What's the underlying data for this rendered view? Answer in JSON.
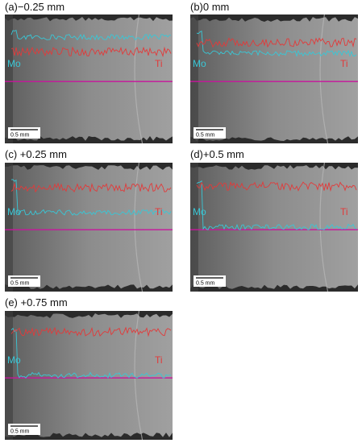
{
  "figure": {
    "element_label_left": "Mo",
    "element_label_right": "Ti",
    "scale_bar_label": "0.5 mm",
    "colors": {
      "mo_trace": "#39c7d6",
      "ti_trace": "#e23a3a",
      "line_scan": "#c8149c",
      "background": "#8c8c8c"
    },
    "panels": [
      {
        "label": "(a)−0.25 mm",
        "ti_level": 0.55,
        "mo_level": 0.82
      },
      {
        "label": "(b)0 mm",
        "ti_level": 0.72,
        "mo_level": 0.52
      },
      {
        "label": "(c) +0.25 mm",
        "ti_level": 0.78,
        "mo_level": 0.32
      },
      {
        "label": "(d)+0.5 mm",
        "ti_level": 0.8,
        "mo_level": 0.05
      },
      {
        "label": "(e) +0.75 mm",
        "ti_level": 0.85,
        "mo_level": 0.05
      }
    ]
  }
}
